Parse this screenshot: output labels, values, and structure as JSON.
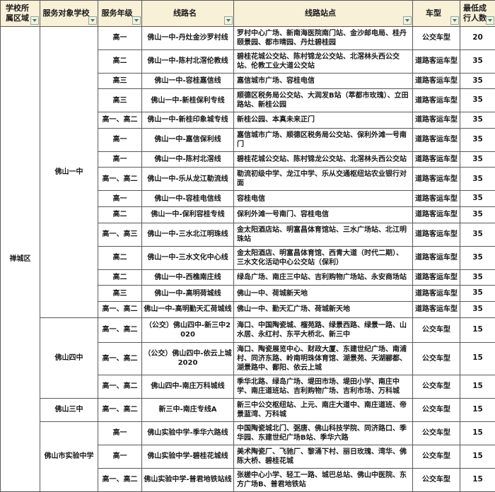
{
  "colors": {
    "header_bg": "#F8F0D7",
    "border": "#595959",
    "filter_arrow_green": "#2e8b2e",
    "cell_bg": "#ffffff",
    "text": "#1a1a1a"
  },
  "header": {
    "columns": [
      {
        "id": "region",
        "label": "学校所属区域"
      },
      {
        "id": "school",
        "label": "服务对象学校"
      },
      {
        "id": "grade",
        "label": "服务年级"
      },
      {
        "id": "route",
        "label": "线路名"
      },
      {
        "id": "stations",
        "label": "线路站点"
      },
      {
        "id": "vehicle",
        "label": "车型"
      },
      {
        "id": "min",
        "label": "最低成行人数"
      }
    ],
    "filter_icon": "filter-dropdown-icon"
  },
  "regions": [
    {
      "name": "禅城区",
      "schools": [
        {
          "name": "佛山一中",
          "routes": [
            {
              "grade": "高一",
              "route": "佛山一中-丹灶金沙罗村线",
              "stations": "罗村中心广场、新南海医院南门站、金沙邮电局、桂丹颐景园、都市晴园、丹灶碧桂园",
              "vehicle": "公交车型",
              "min": "20"
            },
            {
              "grade": "高二",
              "route": "佛山一中-陈村北滘伦教线",
              "stations": "碧桂花城公交站、陈村锦龙公交站、北滘林头西公交站、伦教工业大道公交站",
              "vehicle": "道路客运车型",
              "min": "35"
            },
            {
              "grade": "高三",
              "route": "佛山一中-容桂嘉信线",
              "stations": "嘉信城市广场、容桂电信",
              "vehicle": "道路客运车型",
              "min": "35"
            },
            {
              "grade": "高三",
              "route": "佛山一中-新桂保利专线",
              "stations": "顺德区税务局公交站、大润发B站（萃都市玫瑰）、立田路站、新桂公园",
              "vehicle": "道路客运车型",
              "min": "35"
            },
            {
              "grade": "高一、高二",
              "route": "佛山一中-新桂印象城专线",
              "stations": "新桂公园、本真未来正门",
              "vehicle": "道路客运车型",
              "min": "35"
            },
            {
              "grade": "高一",
              "route": "佛山一中-嘉信保利线",
              "stations": "嘉信城市广场、顺德区税务局公交站、保利外滩一号南门",
              "vehicle": "道路客运车型",
              "min": "35"
            },
            {
              "grade": "高一",
              "route": "佛山一中-陈村北滘线",
              "stations": "碧桂花城公交站、陈村锦龙公交站、北滘林头西公交站",
              "vehicle": "道路客运车型",
              "min": "35"
            },
            {
              "grade": "高一、高二",
              "route": "佛山一中-乐从龙江勒流线",
              "stations": "勒流初级中学、龙江中学、乐从交通枢纽站农业银行对面",
              "vehicle": "道路客运车型",
              "min": "35"
            },
            {
              "grade": "高一",
              "route": "佛山一中-容桂电信线",
              "stations": "容桂电信",
              "vehicle": "道路客运车型",
              "min": "35"
            },
            {
              "grade": "高二",
              "route": "佛山一中-保利容桂专线",
              "stations": "保利外滩一号南门、容桂电信",
              "vehicle": "道路客运车型",
              "min": "35"
            },
            {
              "grade": "高一、高三",
              "route": "佛山一中-三水北江明珠线",
              "stations": "金太阳酒店站、明富昌体育馆站、三水广场站、北江明珠站",
              "vehicle": "道路客运车型",
              "min": "35"
            },
            {
              "grade": "高二",
              "route": "佛山一中-三水文化中心线",
              "stations": "金太阳酒店、明富昌体育馆、西青大道（时代二期）、三水文化活动中心公交站（保利）",
              "vehicle": "道路客运车型",
              "min": "35"
            },
            {
              "grade": "高二",
              "route": "佛山一中-西樵南庄线",
              "stations": "绿岛广场、南庄三中站、吉利购物广场站、永安商场站",
              "vehicle": "道路客运车型",
              "min": "35"
            },
            {
              "grade": "高三",
              "route": "佛山一中-高明荷城线",
              "stations": "佛山一中、荷城新天地",
              "vehicle": "道路客运车型",
              "min": "35"
            },
            {
              "grade": "高一、高二",
              "route": "佛山一中-高明勤天汇荷城线",
              "stations": "佛山一中、勤天汇广场、荷城新天地",
              "vehicle": "道路客运车型",
              "min": "35"
            }
          ]
        },
        {
          "name": "佛山四中",
          "routes": [
            {
              "grade": "高一、高二",
              "route": "（公交）佛山四中-新三中2020",
              "stations": "海口、中国陶瓷城、榴苑路、绿景西路、绿景一路、山水居、永红村、东平大桥北、新三中",
              "vehicle": "公交车型",
              "min": "15"
            },
            {
              "grade": "高一、高二",
              "route": "（公交）佛山四中-依云上城2020",
              "stations": "海口、陶瓷展览中心、财政大厦、东建世纪广场、南浦村、同济东路、岭南明珠体育馆、湖景苑、天湖郦都、湖景路中、鄱阳、依云上城",
              "vehicle": "公交车型",
              "min": "15"
            },
            {
              "grade": "高一、高二",
              "route": "佛山四中-南庄万科城线",
              "stations": "季华北路、绿岛广场、堤田市场、堤田小学、南庄中学、南庄道班站、吉利购物广场、吉利市场、万科城",
              "vehicle": "公交车型",
              "min": "15"
            }
          ]
        },
        {
          "name": "佛山三中",
          "routes": [
            {
              "grade": "高一、高二",
              "route": "新三中-南庄专线A",
              "stations": "新三中公交枢纽站、上元、南庄大道中、南庄道班、帝景蓝湾、万科城",
              "vehicle": "公交车型",
              "min": "15"
            }
          ]
        },
        {
          "name": "佛山市实验中学",
          "routes": [
            {
              "grade": "高一",
              "route": "佛山实验中学-季华六路线",
              "stations": "中国陶瓷城北门、弼唐、佛山科技学院、同济路口、季华园、东建世纪广场B站、季华六路",
              "vehicle": "公交车型",
              "min": "15"
            },
            {
              "grade": "高一",
              "route": "佛山实验中学-碧桂花城线",
              "stations": "美术陶瓷厂、飞驰厂、黎涌下村、丽日玫瑰、湾华、佛陈大桥、碧桂花城",
              "vehicle": "公交车型",
              "min": "15"
            },
            {
              "grade": "高一、高二",
              "route": "佛山实验中学-普君地铁站线",
              "stations": "张槎中心小学、轻工一路、城巴总站、佛山中医院、东方广场B、普君地铁站",
              "vehicle": "公交车型",
              "min": "15"
            }
          ]
        }
      ]
    }
  ]
}
